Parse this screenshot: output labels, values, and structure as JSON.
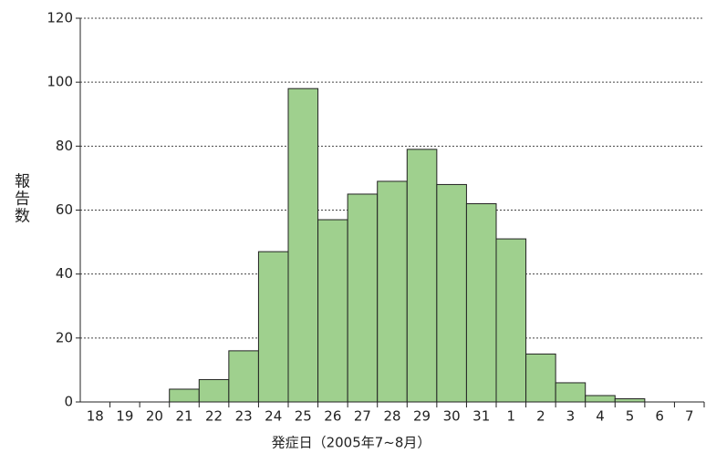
{
  "chart_data": {
    "type": "bar",
    "x_label": "発症日（2005年7~8月）",
    "y_label": "報告数",
    "categories": [
      "18",
      "19",
      "20",
      "21",
      "22",
      "23",
      "24",
      "25",
      "26",
      "27",
      "28",
      "29",
      "30",
      "31",
      "1",
      "2",
      "3",
      "4",
      "5",
      "6",
      "7"
    ],
    "values": [
      0,
      0,
      0,
      4,
      7,
      16,
      47,
      98,
      57,
      65,
      69,
      79,
      68,
      62,
      51,
      15,
      6,
      2,
      1,
      0,
      0
    ],
    "color": "#9fd08e",
    "ylim": [
      0,
      120
    ],
    "yticks": [
      0,
      20,
      40,
      60,
      80,
      100,
      120
    ],
    "grid": true
  }
}
